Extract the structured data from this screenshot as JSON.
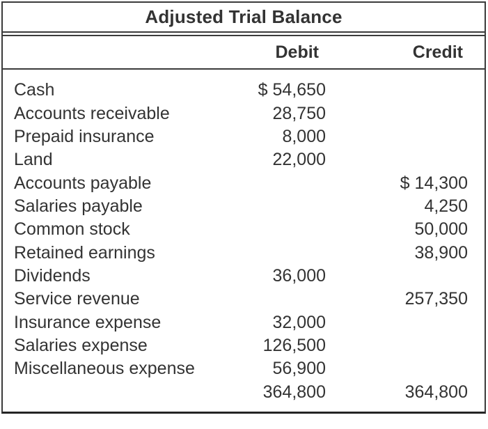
{
  "title": "Adjusted Trial Balance",
  "columns": {
    "debit": "Debit",
    "credit": "Credit"
  },
  "rows": [
    {
      "name": "Cash",
      "debit": "$ 54,650",
      "credit": ""
    },
    {
      "name": "Accounts receivable",
      "debit": "28,750",
      "credit": ""
    },
    {
      "name": "Prepaid insurance",
      "debit": "8,000",
      "credit": ""
    },
    {
      "name": "Land",
      "debit": "22,000",
      "credit": ""
    },
    {
      "name": "Accounts payable",
      "debit": "",
      "credit": "$ 14,300"
    },
    {
      "name": "Salaries payable",
      "debit": "",
      "credit": "4,250"
    },
    {
      "name": "Common stock",
      "debit": "",
      "credit": "50,000"
    },
    {
      "name": "Retained earnings",
      "debit": "",
      "credit": "38,900"
    },
    {
      "name": "Dividends",
      "debit": "36,000",
      "credit": ""
    },
    {
      "name": "Service revenue",
      "debit": "",
      "credit": "257,350"
    },
    {
      "name": "Insurance expense",
      "debit": "32,000",
      "credit": ""
    },
    {
      "name": "Salaries expense",
      "debit": "126,500",
      "credit": ""
    },
    {
      "name": "Miscellaneous expense",
      "debit": "56,900",
      "credit": ""
    },
    {
      "name": "",
      "debit": "364,800",
      "credit": "364,800"
    }
  ],
  "totals": {
    "debit": "364,800",
    "credit": "364,800"
  },
  "colors": {
    "text": "#333333",
    "border": "#3b3b3b",
    "border_bottom": "#242424",
    "background": "#ffffff"
  }
}
